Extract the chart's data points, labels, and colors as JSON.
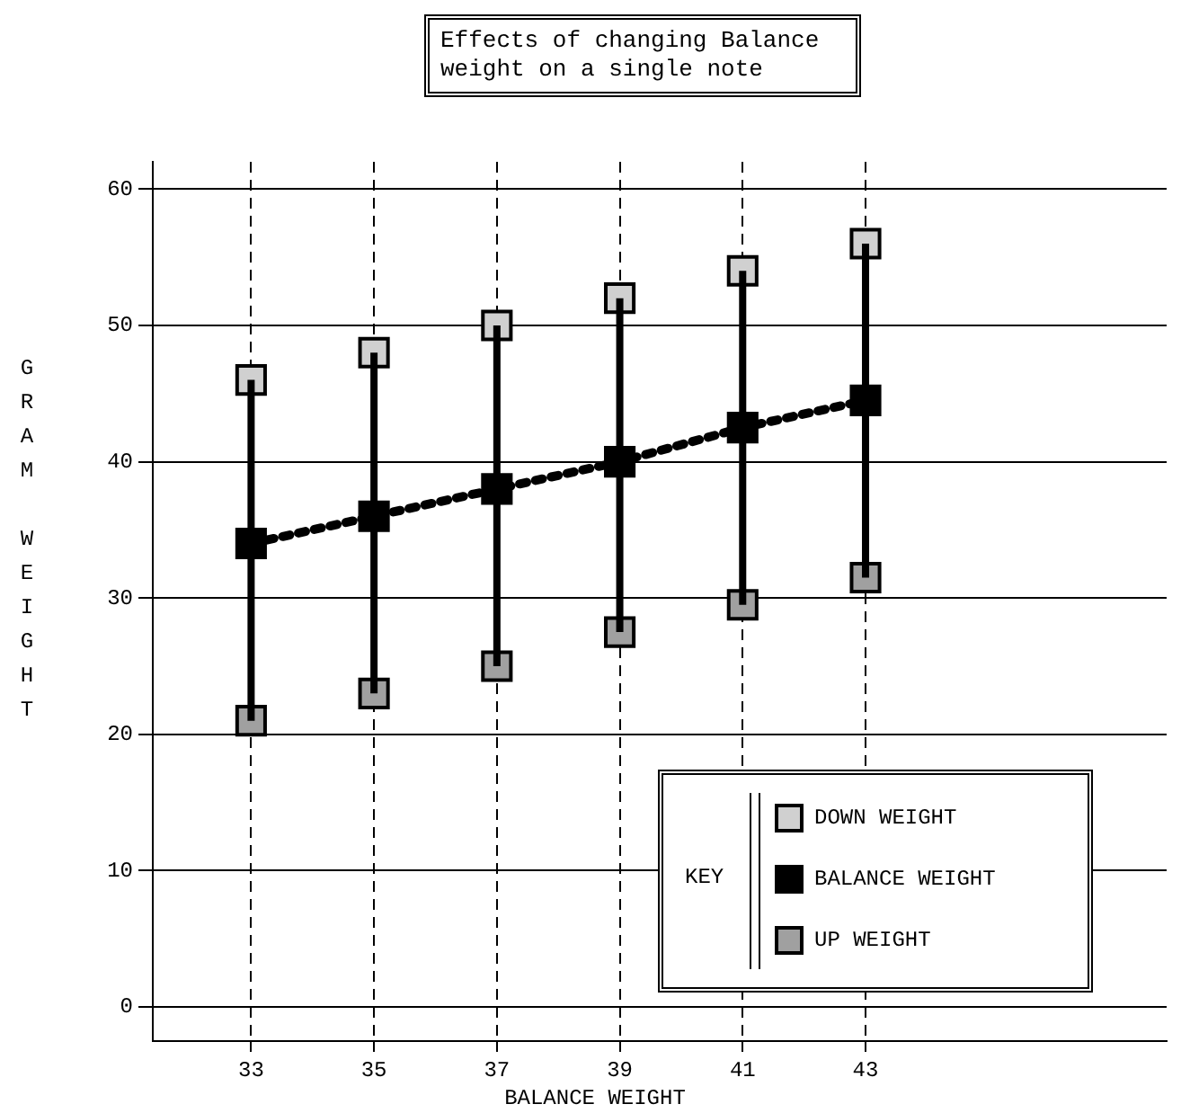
{
  "chart_data": {
    "type": "scatter",
    "title": "Effects of changing Balance weight on a single note",
    "xlabel": "BALANCE WEIGHT",
    "ylabel": "GRAM WEIGHT",
    "legend_title": "KEY",
    "legend": "bottom right",
    "grid": true,
    "marker": "square",
    "x": [
      33,
      35,
      37,
      39,
      41,
      43
    ],
    "xlim": [
      31.4,
      47.9
    ],
    "xticks": [
      33,
      35,
      37,
      39,
      41,
      43
    ],
    "ylim": [
      -2.5,
      62
    ],
    "yticks": [
      0,
      10,
      20,
      30,
      40,
      50,
      60
    ],
    "series": [
      {
        "name": "DOWN WEIGHT",
        "color": "#d0d0d0",
        "type": "scatter",
        "values": [
          46,
          48,
          50,
          52,
          54,
          56
        ]
      },
      {
        "name": "BALANCE WEIGHT",
        "color": "#000000",
        "type": "line",
        "line_style": "dotted",
        "values": [
          34,
          36,
          38,
          40,
          42.5,
          44.5
        ],
        "errors": [
          [
            21,
            46
          ],
          [
            23,
            48
          ],
          [
            25,
            50
          ],
          [
            27.5,
            52
          ],
          [
            29.5,
            54
          ],
          [
            31.5,
            56
          ]
        ]
      },
      {
        "name": "UP WEIGHT",
        "color": "#a0a0a0",
        "type": "scatter",
        "values": [
          21,
          23,
          25,
          27.5,
          29.5,
          31.5
        ]
      }
    ]
  }
}
